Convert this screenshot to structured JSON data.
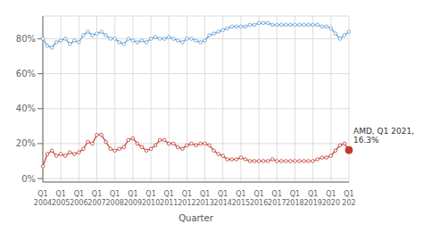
{
  "chart_data": {
    "type": "line",
    "xlabel": "Quarter",
    "categories": [
      "Q1\n2004",
      null,
      null,
      null,
      "Q1\n2005",
      null,
      null,
      null,
      "Q1\n2006",
      null,
      null,
      null,
      "Q1\n2007",
      null,
      null,
      null,
      "Q1\n2008",
      null,
      null,
      null,
      "Q1\n2009",
      null,
      null,
      null,
      "Q1\n2010",
      null,
      null,
      null,
      "Q1\n2011",
      null,
      null,
      null,
      "Q1\n2012",
      null,
      null,
      null,
      "Q1\n2013",
      null,
      null,
      null,
      "Q1\n2014",
      null,
      null,
      null,
      "Q1\n2015",
      null,
      null,
      null,
      "Q1\n2016",
      null,
      null,
      null,
      "Q1\n2017",
      null,
      null,
      null,
      "Q1\n2018",
      null,
      null,
      null,
      "Q1\n2019",
      null,
      null,
      null,
      "Q1\n2020",
      null,
      null,
      null,
      "Q1\n202"
    ],
    "series": [
      {
        "color": "#5b9bd5",
        "marker": "circle",
        "values": [
          80,
          76,
          75,
          78,
          79,
          80,
          77,
          79,
          78,
          82,
          84,
          82,
          83,
          84,
          82,
          80,
          80,
          78,
          77,
          80,
          79,
          78,
          79,
          78,
          80,
          81,
          80,
          80,
          81,
          80,
          79,
          78,
          80,
          80,
          79,
          78,
          79,
          82,
          83,
          84,
          85,
          86,
          87,
          87,
          87,
          87,
          88,
          88,
          89,
          89,
          89,
          88,
          88,
          88,
          88,
          88,
          88,
          88,
          88,
          88,
          88,
          88,
          87,
          87,
          86,
          83,
          80,
          82,
          84
        ]
      },
      {
        "color": "#c0392b",
        "marker": "circle",
        "values": [
          7,
          14,
          16,
          13,
          14,
          13,
          15,
          14,
          15,
          17,
          21,
          20,
          25,
          25,
          21,
          17,
          16,
          17,
          18,
          22,
          23,
          20,
          18,
          16,
          17,
          19,
          22,
          22,
          20,
          20,
          18,
          17,
          19,
          20,
          19,
          20,
          20,
          19,
          16,
          14,
          13,
          11,
          11,
          11,
          12,
          11,
          10,
          10,
          10,
          10,
          10,
          11,
          10,
          10,
          10,
          10,
          10,
          10,
          10,
          10,
          10,
          11,
          12,
          12,
          13,
          16,
          19,
          20,
          16.3
        ]
      }
    ],
    "ylim": [
      -2,
      93
    ],
    "yticks": [
      {
        "value": 0,
        "label": "0%"
      },
      {
        "value": 20,
        "label": "20%"
      },
      {
        "value": 40,
        "label": "40%"
      },
      {
        "value": 60,
        "label": "60%"
      },
      {
        "value": 80,
        "label": "80%"
      }
    ],
    "grid": true,
    "annotations": [
      {
        "text": "AMD, Q1 2021,\n16.3%",
        "x": 68,
        "y": 16.3,
        "color": "#c0392b"
      }
    ]
  }
}
